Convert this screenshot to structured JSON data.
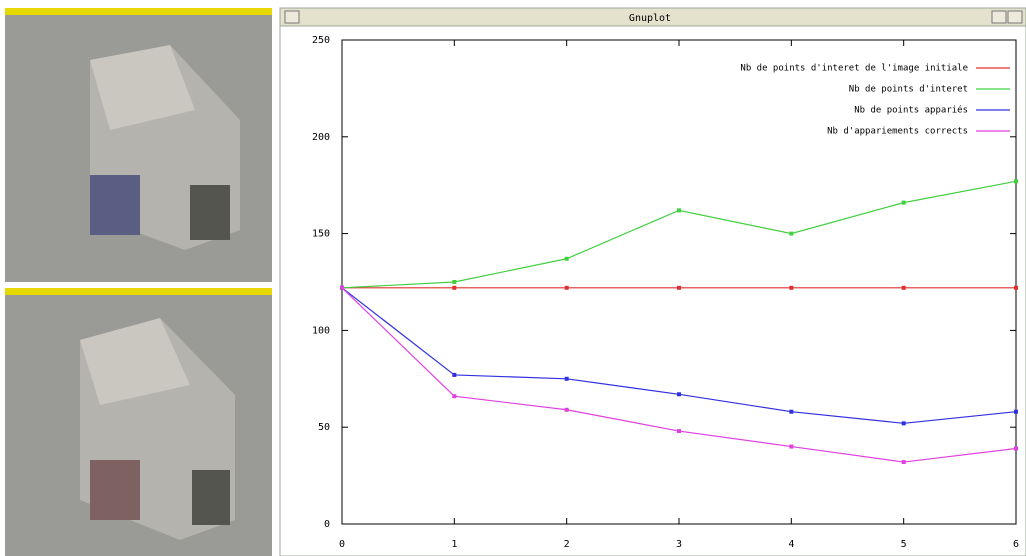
{
  "window": {
    "title": "Gnuplot"
  },
  "chart_data": {
    "type": "line",
    "x": [
      0,
      1,
      2,
      3,
      4,
      5,
      6
    ],
    "xlim": [
      0,
      6
    ],
    "xticks": [
      0,
      1,
      2,
      3,
      4,
      5,
      6
    ],
    "ylim": [
      0,
      250
    ],
    "yticks": [
      0,
      50,
      100,
      150,
      200,
      250
    ],
    "legend": "top-right",
    "series": [
      {
        "name": "Nb de points d'interet de l'image initiale",
        "color": "#e03030",
        "values": [
          122,
          122,
          122,
          122,
          122,
          122,
          122
        ]
      },
      {
        "name": "Nb de points d'interet",
        "color": "#40d040",
        "values": [
          122,
          125,
          137,
          162,
          150,
          166,
          177
        ]
      },
      {
        "name": "Nb de points appariés",
        "color": "#3030e0",
        "values": [
          122,
          77,
          75,
          67,
          58,
          52,
          58
        ]
      },
      {
        "name": "Nb d'appariements corrects",
        "color": "#e040e0",
        "values": [
          122,
          66,
          59,
          48,
          40,
          32,
          39
        ]
      }
    ]
  }
}
